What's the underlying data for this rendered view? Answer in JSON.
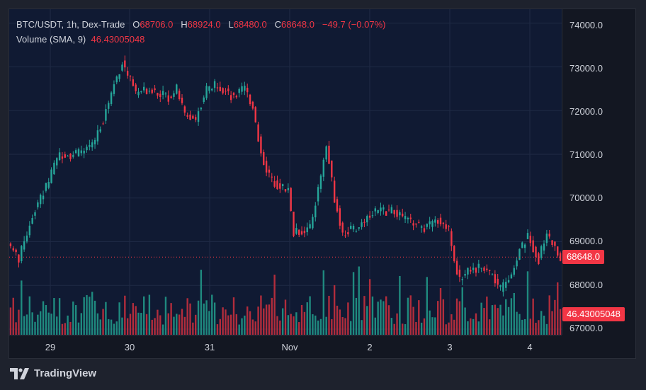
{
  "legend": {
    "symbol": "BTC/USDT, 1h, Dex-Trade",
    "open_label": "O",
    "open_value": "68706.0",
    "high_label": "H",
    "high_value": "68924.0",
    "low_label": "L",
    "low_value": "68480.0",
    "close_label": "C",
    "close_value": "68648.0",
    "change": "−49.7 (−0.07%)",
    "volume_label": "Volume (SMA, 9)",
    "volume_value": "46.43005048"
  },
  "price_axis": {
    "ticks": [
      "74000.0",
      "73000.0",
      "72000.0",
      "71000.0",
      "70000.0",
      "69000.0",
      "68000.0",
      "67000.0"
    ],
    "last_price_badge": "68648.0",
    "volume_badge": "46.43005048"
  },
  "time_axis": {
    "ticks": [
      "29",
      "30",
      "31",
      "Nov",
      "2",
      "3",
      "4"
    ]
  },
  "brand": {
    "name": "TradingView"
  },
  "colors": {
    "up": "#26a69a",
    "down": "#f23645",
    "vol_up": "#1f8a7f",
    "vol_down": "#b22d3c",
    "background": "#101a33"
  },
  "chart_data": {
    "type": "candlestick",
    "title": "BTC/USDT, 1h, Dex-Trade",
    "x_ticks": [
      "29",
      "30",
      "31",
      "Nov",
      "2",
      "3",
      "4"
    ],
    "y_ticks": [
      74000,
      73000,
      72000,
      71000,
      70000,
      69000,
      68000,
      67000
    ],
    "ylim": [
      66870,
      74320
    ],
    "last_price": 68648.0,
    "anchors": [
      {
        "i": 0,
        "p": 68900
      },
      {
        "i": 3,
        "p": 68600
      },
      {
        "i": 5,
        "p": 69000
      },
      {
        "i": 8,
        "p": 69600
      },
      {
        "i": 11,
        "p": 70000
      },
      {
        "i": 14,
        "p": 70400
      },
      {
        "i": 18,
        "p": 71000
      },
      {
        "i": 24,
        "p": 71000
      },
      {
        "i": 30,
        "p": 71200
      },
      {
        "i": 34,
        "p": 71800
      },
      {
        "i": 38,
        "p": 72600
      },
      {
        "i": 41,
        "p": 73100
      },
      {
        "i": 46,
        "p": 72400
      },
      {
        "i": 52,
        "p": 72500
      },
      {
        "i": 58,
        "p": 72300
      },
      {
        "i": 61,
        "p": 72500
      },
      {
        "i": 64,
        "p": 71900
      },
      {
        "i": 68,
        "p": 71800
      },
      {
        "i": 72,
        "p": 72500
      },
      {
        "i": 76,
        "p": 72600
      },
      {
        "i": 82,
        "p": 72300
      },
      {
        "i": 86,
        "p": 72500
      },
      {
        "i": 89,
        "p": 72100
      },
      {
        "i": 92,
        "p": 71000
      },
      {
        "i": 95,
        "p": 70500
      },
      {
        "i": 98,
        "p": 70300
      },
      {
        "i": 102,
        "p": 70200
      },
      {
        "i": 104,
        "p": 69200
      },
      {
        "i": 110,
        "p": 69300
      },
      {
        "i": 113,
        "p": 70200
      },
      {
        "i": 116,
        "p": 71200
      },
      {
        "i": 119,
        "p": 70000
      },
      {
        "i": 122,
        "p": 69200
      },
      {
        "i": 127,
        "p": 69300
      },
      {
        "i": 133,
        "p": 69700
      },
      {
        "i": 140,
        "p": 69700
      },
      {
        "i": 146,
        "p": 69500
      },
      {
        "i": 152,
        "p": 69300
      },
      {
        "i": 157,
        "p": 69500
      },
      {
        "i": 161,
        "p": 69300
      },
      {
        "i": 163,
        "p": 68600
      },
      {
        "i": 165,
        "p": 68100
      },
      {
        "i": 168,
        "p": 68400
      },
      {
        "i": 172,
        "p": 68400
      },
      {
        "i": 176,
        "p": 68300
      },
      {
        "i": 180,
        "p": 67900
      },
      {
        "i": 184,
        "p": 68300
      },
      {
        "i": 187,
        "p": 68800
      },
      {
        "i": 190,
        "p": 69100
      },
      {
        "i": 194,
        "p": 68600
      },
      {
        "i": 197,
        "p": 69200
      },
      {
        "i": 202,
        "p": 68600
      }
    ],
    "volume_ymax": 120
  }
}
